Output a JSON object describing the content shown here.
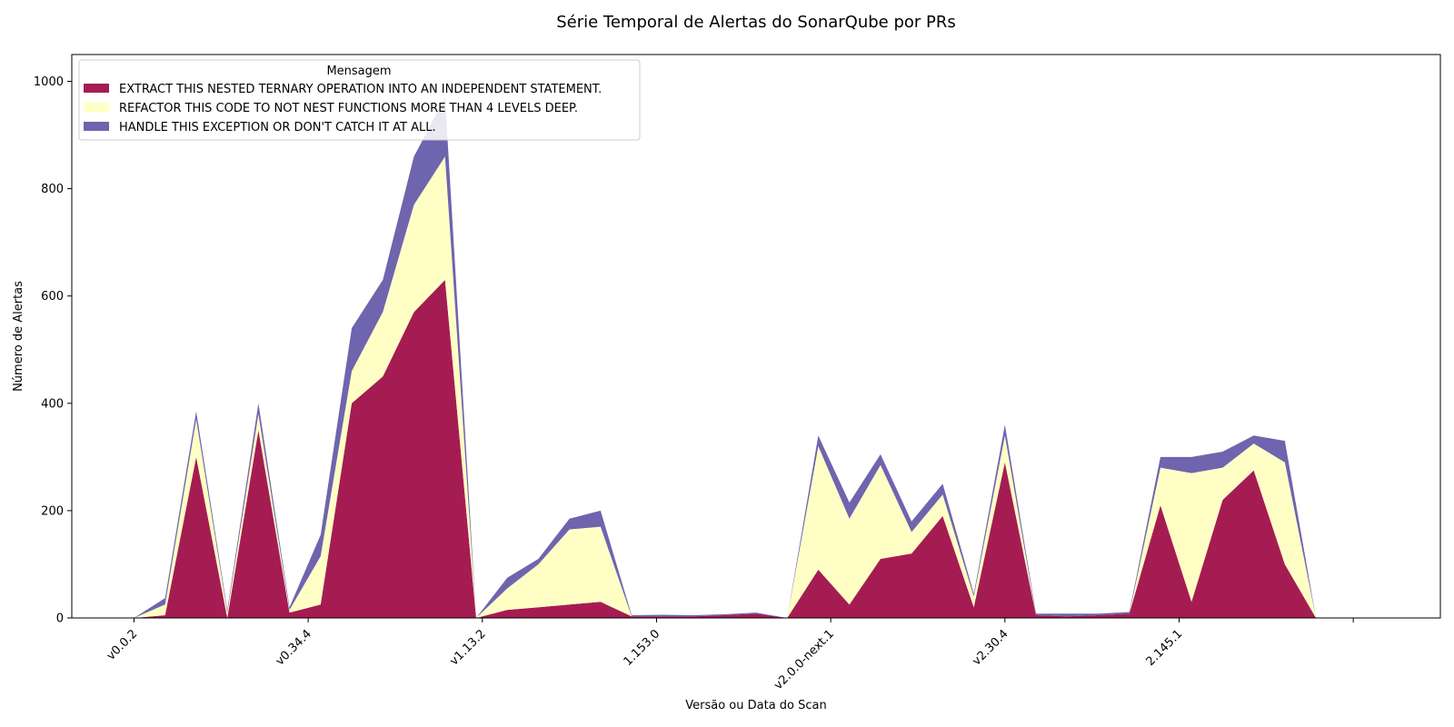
{
  "chart_data": {
    "type": "area",
    "stacked": true,
    "title": "Série Temporal de Alertas do SonarQube por PRs",
    "xlabel": "Versão ou Data do Scan",
    "ylabel": "Número de Alertas",
    "ylim": [
      0,
      1050
    ],
    "yticks": [
      0,
      200,
      400,
      600,
      800,
      1000
    ],
    "xticks": [
      "v0.0.2",
      "v0.34.4",
      "v1.13.2",
      "1.153.0",
      "v2.0.0-next.1",
      "v2.30.4",
      "2.145.1",
      ""
    ],
    "xlim": [
      -2,
      42
    ],
    "grid": false,
    "legend": {
      "title": "Mensagem",
      "position": "top-left"
    },
    "x": [
      0,
      1,
      2,
      3,
      4,
      5,
      6,
      7,
      8,
      9,
      10,
      11,
      12,
      13,
      14,
      15,
      16,
      17,
      18,
      19,
      20,
      21,
      22,
      23,
      24,
      25,
      26,
      27,
      28,
      29,
      30,
      31,
      32,
      33,
      34,
      35,
      36,
      37,
      38,
      39,
      40
    ],
    "series": [
      {
        "name": "EXTRACT THIS NESTED TERNARY OPERATION INTO AN INDEPENDENT STATEMENT.",
        "color": "#a51c52",
        "values": [
          0,
          5,
          300,
          0,
          350,
          10,
          25,
          400,
          450,
          570,
          630,
          0,
          15,
          20,
          25,
          30,
          3,
          3,
          3,
          5,
          8,
          0,
          90,
          25,
          110,
          120,
          190,
          20,
          290,
          5,
          3,
          5,
          8,
          210,
          30,
          220,
          275,
          100,
          0,
          0,
          0
        ]
      },
      {
        "name": "REFACTOR THIS CODE TO NOT NEST FUNCTIONS MORE THAN 4 LEVELS DEEP.",
        "color": "#ffffc5",
        "values": [
          0,
          20,
          70,
          10,
          30,
          5,
          90,
          60,
          120,
          200,
          230,
          0,
          40,
          80,
          140,
          140,
          0,
          0,
          0,
          0,
          0,
          0,
          230,
          160,
          175,
          40,
          40,
          20,
          50,
          0,
          0,
          0,
          0,
          70,
          240,
          60,
          50,
          190,
          0,
          0,
          0
        ]
      },
      {
        "name": "HANDLE THIS EXCEPTION OR DON'T CATCH IT AT ALL.",
        "color": "#6f64ae",
        "values": [
          0,
          12,
          15,
          5,
          20,
          5,
          40,
          80,
          60,
          90,
          110,
          0,
          20,
          10,
          20,
          30,
          2,
          3,
          2,
          2,
          2,
          0,
          20,
          30,
          20,
          20,
          20,
          5,
          20,
          3,
          5,
          3,
          3,
          20,
          30,
          30,
          15,
          40,
          0,
          0,
          0
        ]
      }
    ]
  }
}
